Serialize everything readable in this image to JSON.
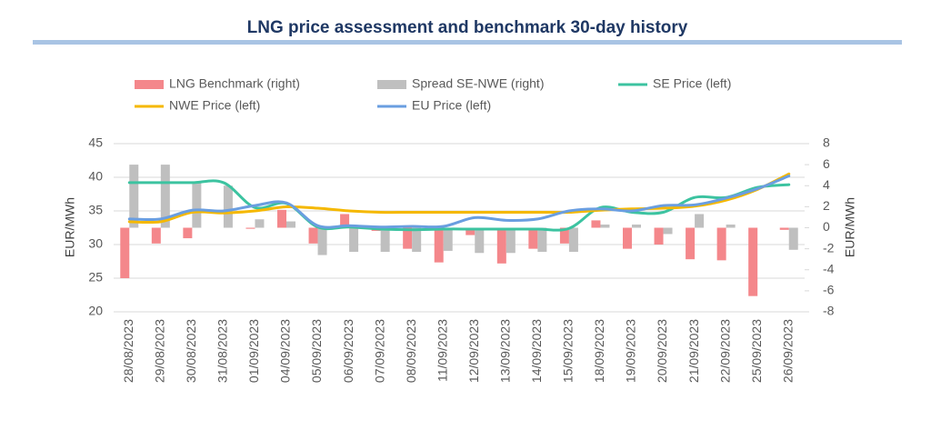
{
  "chart_data": {
    "type": "bar-line",
    "title": "LNG price assessment and benchmark 30-day history",
    "y_label": "EUR/MWh",
    "y2_label": "EUR/MWh",
    "categories": [
      "28/08/2023",
      "29/08/2023",
      "30/08/2023",
      "31/08/2023",
      "01/09/2023",
      "04/09/2023",
      "05/09/2023",
      "06/09/2023",
      "07/09/2023",
      "08/09/2023",
      "11/09/2023",
      "12/09/2023",
      "13/09/2023",
      "14/09/2023",
      "15/09/2023",
      "18/09/2023",
      "19/09/2023",
      "20/09/2023",
      "21/09/2023",
      "22/09/2023",
      "25/09/2023",
      "26/09/2023"
    ],
    "series": [
      {
        "name": "LNG Benchmark (right)",
        "type": "bar",
        "axis": "y2",
        "color": "#f4878b",
        "values": [
          -4.8,
          -1.5,
          -1.0,
          0,
          -0.1,
          1.7,
          -1.5,
          1.3,
          -0.3,
          -2.0,
          -3.3,
          -0.7,
          -3.4,
          -2.0,
          -1.5,
          0.7,
          -2.0,
          -1.6,
          -3.0,
          -3.1,
          -6.5,
          -0.2
        ]
      },
      {
        "name": "Spread SE-NWE (right)",
        "type": "bar",
        "axis": "y2",
        "color": "#bfbfbf",
        "values": [
          6.0,
          6.0,
          4.3,
          4.0,
          0.8,
          0.6,
          -2.6,
          -2.3,
          -2.3,
          -2.3,
          -2.2,
          -2.4,
          -2.4,
          -2.3,
          -2.3,
          0.3,
          0.3,
          -0.6,
          1.3,
          0.3,
          0,
          -2.1
        ]
      },
      {
        "name": "SE Price (left)",
        "type": "line",
        "color": "#3cc3a0",
        "values": [
          39.2,
          39.2,
          39.2,
          39.2,
          35.5,
          36.1,
          32.6,
          32.6,
          32.3,
          32.2,
          32.3,
          32.3,
          32.3,
          32.3,
          32.4,
          35.5,
          34.8,
          34.8,
          37.0,
          37.0,
          38.5,
          38.9
        ]
      },
      {
        "name": "NWE Price (left)",
        "type": "line",
        "color": "#f5b800",
        "values": [
          33.4,
          33.4,
          34.8,
          34.7,
          35.0,
          35.6,
          35.4,
          35.0,
          34.8,
          34.8,
          34.8,
          34.8,
          34.8,
          34.8,
          34.8,
          35.1,
          35.3,
          35.4,
          35.7,
          36.6,
          38.2,
          40.5
        ]
      },
      {
        "name": "EU Price (left)",
        "type": "line",
        "color": "#6a9ee0",
        "values": [
          33.8,
          33.8,
          35.1,
          35.0,
          35.8,
          36.2,
          32.8,
          32.8,
          32.6,
          32.7,
          32.7,
          34.0,
          33.6,
          33.8,
          35.0,
          35.3,
          35.0,
          35.8,
          35.9,
          36.9,
          38.3,
          40.2
        ]
      }
    ],
    "ylim": [
      20,
      45
    ],
    "yticks": [
      20,
      25,
      30,
      35,
      40,
      45
    ],
    "y2lim": [
      -8,
      8
    ],
    "y2ticks": [
      -8,
      -6,
      -4,
      -2,
      0,
      2,
      4,
      6,
      8
    ],
    "grid": true
  }
}
